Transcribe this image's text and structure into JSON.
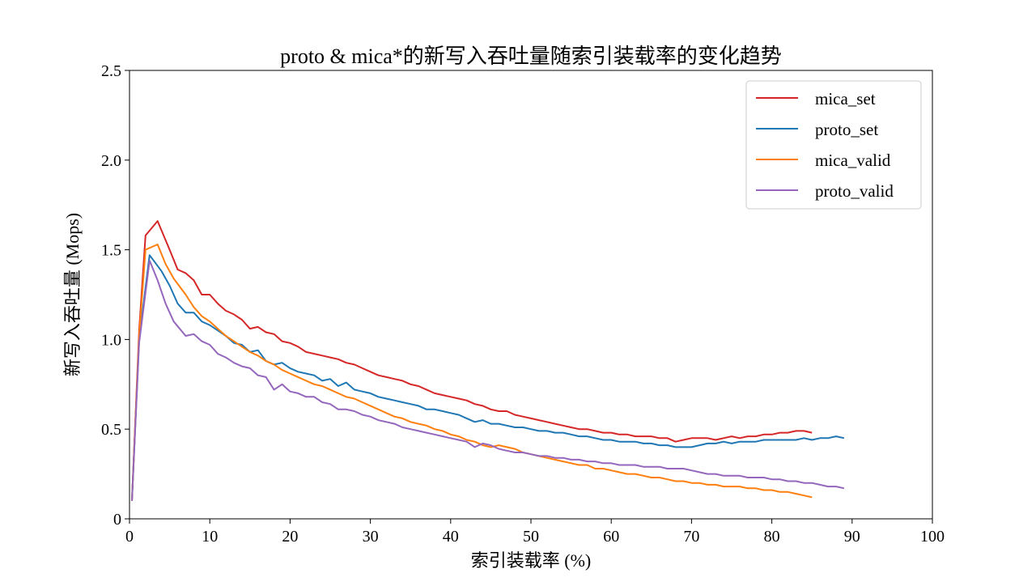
{
  "chart_data": {
    "type": "line",
    "title": "proto & mica*的新写入吞吐量随索引装载率的变化趋势",
    "xlabel": "索引装载率 (%)",
    "ylabel": "新写入吞吐量 (Mops)",
    "xlim": [
      0,
      100
    ],
    "ylim": [
      0,
      2.5
    ],
    "xticks": [
      0,
      10,
      20,
      30,
      40,
      50,
      60,
      70,
      80,
      90,
      100
    ],
    "xtick_labels": [
      "0",
      "10",
      "20",
      "30",
      "40",
      "50",
      "60",
      "70",
      "80",
      "90",
      "100"
    ],
    "yticks": [
      0,
      0.5,
      1.0,
      1.5,
      2.0,
      2.5
    ],
    "ytick_labels": [
      "0",
      "0.5",
      "1.0",
      "1.5",
      "2.0",
      "2.5"
    ],
    "grid": false,
    "legend_position": "top-right",
    "series": [
      {
        "name": "mica_set",
        "color": "#d62728",
        "x": [
          0.3,
          1.2,
          2.0,
          3.5,
          5.0,
          6.0,
          7.0,
          8.0,
          9.0,
          10.0,
          11.0,
          12.0,
          13.0,
          14.0,
          15.0,
          16.0,
          17.0,
          18.0,
          19.0,
          20.0,
          21.0,
          22.0,
          23.0,
          24.0,
          25.0,
          26.0,
          27.0,
          28.0,
          29.0,
          30.0,
          31.0,
          32.0,
          33.0,
          34.0,
          35.0,
          36.0,
          37.0,
          38.0,
          39.0,
          40.0,
          41.0,
          42.0,
          43.0,
          44.0,
          45.0,
          46.0,
          47.0,
          48.0,
          49.0,
          50.0,
          51.0,
          52.0,
          53.0,
          54.0,
          55.0,
          56.0,
          57.0,
          58.0,
          59.0,
          60.0,
          61.0,
          62.0,
          63.0,
          64.0,
          65.0,
          66.0,
          67.0,
          68.0,
          69.0,
          70.0,
          71.0,
          72.0,
          73.0,
          74.0,
          75.0,
          76.0,
          77.0,
          78.0,
          79.0,
          80.0,
          81.0,
          82.0,
          83.0,
          84.0,
          85.0
        ],
        "y": [
          0.1,
          1.05,
          1.58,
          1.66,
          1.5,
          1.39,
          1.37,
          1.33,
          1.25,
          1.25,
          1.2,
          1.16,
          1.14,
          1.11,
          1.06,
          1.07,
          1.04,
          1.03,
          0.99,
          0.98,
          0.96,
          0.93,
          0.92,
          0.91,
          0.9,
          0.89,
          0.87,
          0.86,
          0.84,
          0.82,
          0.8,
          0.79,
          0.78,
          0.77,
          0.75,
          0.74,
          0.72,
          0.7,
          0.69,
          0.68,
          0.67,
          0.66,
          0.64,
          0.63,
          0.61,
          0.6,
          0.6,
          0.58,
          0.57,
          0.56,
          0.55,
          0.54,
          0.53,
          0.52,
          0.51,
          0.5,
          0.5,
          0.49,
          0.48,
          0.48,
          0.47,
          0.47,
          0.46,
          0.46,
          0.46,
          0.45,
          0.45,
          0.43,
          0.44,
          0.45,
          0.45,
          0.45,
          0.44,
          0.45,
          0.46,
          0.45,
          0.46,
          0.46,
          0.47,
          0.47,
          0.48,
          0.48,
          0.49,
          0.49,
          0.48
        ]
      },
      {
        "name": "proto_set",
        "color": "#1f77b4",
        "x": [
          0.3,
          1.2,
          2.5,
          4.0,
          5.0,
          6.0,
          7.0,
          8.0,
          9.0,
          10.0,
          11.0,
          12.0,
          13.0,
          14.0,
          15.0,
          16.0,
          17.0,
          18.0,
          19.0,
          20.0,
          21.0,
          22.0,
          23.0,
          24.0,
          25.0,
          26.0,
          27.0,
          28.0,
          29.0,
          30.0,
          31.0,
          32.0,
          33.0,
          34.0,
          35.0,
          36.0,
          37.0,
          38.0,
          39.0,
          40.0,
          41.0,
          42.0,
          43.0,
          44.0,
          45.0,
          46.0,
          47.0,
          48.0,
          49.0,
          50.0,
          51.0,
          52.0,
          53.0,
          54.0,
          55.0,
          56.0,
          57.0,
          58.0,
          59.0,
          60.0,
          61.0,
          62.0,
          63.0,
          64.0,
          65.0,
          66.0,
          67.0,
          68.0,
          69.0,
          70.0,
          71.0,
          72.0,
          73.0,
          74.0,
          75.0,
          76.0,
          77.0,
          78.0,
          79.0,
          80.0,
          81.0,
          82.0,
          83.0,
          84.0,
          85.0,
          86.0,
          87.0,
          88.0,
          89.0
        ],
        "y": [
          0.1,
          1.0,
          1.47,
          1.38,
          1.3,
          1.2,
          1.15,
          1.15,
          1.1,
          1.08,
          1.05,
          1.02,
          0.98,
          0.97,
          0.93,
          0.94,
          0.88,
          0.86,
          0.87,
          0.84,
          0.82,
          0.81,
          0.8,
          0.77,
          0.78,
          0.74,
          0.76,
          0.72,
          0.71,
          0.7,
          0.68,
          0.67,
          0.66,
          0.65,
          0.64,
          0.63,
          0.61,
          0.61,
          0.6,
          0.59,
          0.58,
          0.56,
          0.54,
          0.55,
          0.53,
          0.53,
          0.52,
          0.51,
          0.51,
          0.5,
          0.49,
          0.49,
          0.48,
          0.48,
          0.47,
          0.46,
          0.46,
          0.45,
          0.44,
          0.44,
          0.43,
          0.43,
          0.43,
          0.42,
          0.42,
          0.41,
          0.41,
          0.4,
          0.4,
          0.4,
          0.41,
          0.42,
          0.42,
          0.43,
          0.42,
          0.43,
          0.43,
          0.43,
          0.44,
          0.44,
          0.44,
          0.44,
          0.44,
          0.45,
          0.44,
          0.45,
          0.45,
          0.46,
          0.45
        ]
      },
      {
        "name": "mica_valid",
        "color": "#ff7f0e",
        "x": [
          0.3,
          1.2,
          2.0,
          3.5,
          4.5,
          5.5,
          7.0,
          8.0,
          9.0,
          10.0,
          11.0,
          12.0,
          13.0,
          14.0,
          15.0,
          16.0,
          17.0,
          18.0,
          19.0,
          20.0,
          21.0,
          22.0,
          23.0,
          24.0,
          25.0,
          26.0,
          27.0,
          28.0,
          29.0,
          30.0,
          31.0,
          32.0,
          33.0,
          34.0,
          35.0,
          36.0,
          37.0,
          38.0,
          39.0,
          40.0,
          41.0,
          42.0,
          43.0,
          44.0,
          45.0,
          46.0,
          47.0,
          48.0,
          49.0,
          50.0,
          51.0,
          52.0,
          53.0,
          54.0,
          55.0,
          56.0,
          57.0,
          58.0,
          59.0,
          60.0,
          61.0,
          62.0,
          63.0,
          64.0,
          65.0,
          66.0,
          67.0,
          68.0,
          69.0,
          70.0,
          71.0,
          72.0,
          73.0,
          74.0,
          75.0,
          76.0,
          77.0,
          78.0,
          79.0,
          80.0,
          81.0,
          82.0,
          83.0,
          84.0,
          85.0
        ],
        "y": [
          0.1,
          1.02,
          1.5,
          1.53,
          1.42,
          1.34,
          1.25,
          1.18,
          1.13,
          1.1,
          1.06,
          1.02,
          0.99,
          0.96,
          0.93,
          0.91,
          0.88,
          0.86,
          0.83,
          0.81,
          0.79,
          0.77,
          0.75,
          0.74,
          0.72,
          0.7,
          0.68,
          0.67,
          0.65,
          0.63,
          0.61,
          0.59,
          0.57,
          0.56,
          0.54,
          0.53,
          0.52,
          0.5,
          0.49,
          0.47,
          0.46,
          0.44,
          0.43,
          0.41,
          0.4,
          0.41,
          0.4,
          0.39,
          0.37,
          0.36,
          0.35,
          0.34,
          0.33,
          0.32,
          0.31,
          0.3,
          0.3,
          0.28,
          0.28,
          0.27,
          0.26,
          0.25,
          0.25,
          0.24,
          0.23,
          0.23,
          0.22,
          0.21,
          0.21,
          0.2,
          0.2,
          0.19,
          0.19,
          0.18,
          0.18,
          0.18,
          0.17,
          0.17,
          0.16,
          0.16,
          0.15,
          0.15,
          0.14,
          0.13,
          0.12
        ]
      },
      {
        "name": "proto_valid",
        "color": "#9467bd",
        "x": [
          0.3,
          1.2,
          2.5,
          3.5,
          4.5,
          5.5,
          7.0,
          8.0,
          9.0,
          10.0,
          11.0,
          12.0,
          13.0,
          14.0,
          15.0,
          16.0,
          17.0,
          18.0,
          19.0,
          20.0,
          21.0,
          22.0,
          23.0,
          24.0,
          25.0,
          26.0,
          27.0,
          28.0,
          29.0,
          30.0,
          31.0,
          32.0,
          33.0,
          34.0,
          35.0,
          36.0,
          37.0,
          38.0,
          39.0,
          40.0,
          41.0,
          42.0,
          43.0,
          44.0,
          45.0,
          46.0,
          47.0,
          48.0,
          49.0,
          50.0,
          51.0,
          52.0,
          53.0,
          54.0,
          55.0,
          56.0,
          57.0,
          58.0,
          59.0,
          60.0,
          61.0,
          62.0,
          63.0,
          64.0,
          65.0,
          66.0,
          67.0,
          68.0,
          69.0,
          70.0,
          71.0,
          72.0,
          73.0,
          74.0,
          75.0,
          76.0,
          77.0,
          78.0,
          79.0,
          80.0,
          81.0,
          82.0,
          83.0,
          84.0,
          85.0,
          86.0,
          87.0,
          88.0,
          89.0
        ],
        "y": [
          0.1,
          0.98,
          1.44,
          1.33,
          1.2,
          1.1,
          1.02,
          1.03,
          0.99,
          0.97,
          0.92,
          0.9,
          0.87,
          0.85,
          0.84,
          0.8,
          0.79,
          0.72,
          0.75,
          0.71,
          0.7,
          0.68,
          0.68,
          0.65,
          0.64,
          0.61,
          0.61,
          0.6,
          0.58,
          0.57,
          0.55,
          0.54,
          0.53,
          0.51,
          0.5,
          0.49,
          0.48,
          0.47,
          0.46,
          0.45,
          0.44,
          0.43,
          0.4,
          0.42,
          0.41,
          0.39,
          0.38,
          0.37,
          0.37,
          0.36,
          0.35,
          0.35,
          0.34,
          0.34,
          0.33,
          0.33,
          0.32,
          0.32,
          0.31,
          0.31,
          0.3,
          0.3,
          0.3,
          0.29,
          0.29,
          0.29,
          0.28,
          0.28,
          0.28,
          0.27,
          0.26,
          0.25,
          0.25,
          0.24,
          0.24,
          0.24,
          0.23,
          0.23,
          0.23,
          0.22,
          0.22,
          0.21,
          0.21,
          0.2,
          0.2,
          0.19,
          0.18,
          0.18,
          0.17
        ]
      }
    ]
  }
}
